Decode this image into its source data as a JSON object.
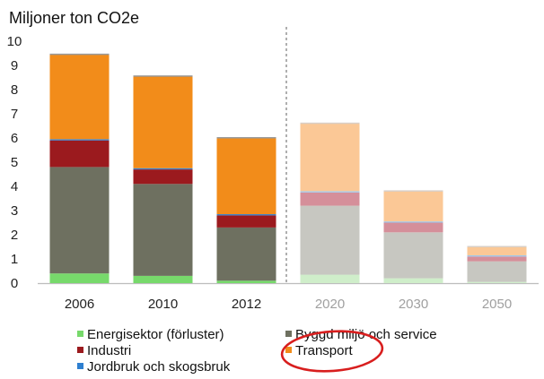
{
  "chart_data": {
    "type": "bar",
    "stacked": true,
    "title": "Miljoner ton CO2e",
    "categories": [
      "2006",
      "2010",
      "2012",
      "2020",
      "2030",
      "2050"
    ],
    "projected_from_index": 3,
    "ylim": [
      0,
      10
    ],
    "yticks": [
      0,
      1,
      2,
      3,
      4,
      5,
      6,
      7,
      8,
      9,
      10
    ],
    "series": [
      {
        "name": "Energisektor (förluster)",
        "color": "#77d96b",
        "faded_color": "#cfeeca",
        "values": [
          0.4,
          0.3,
          0.1,
          0.35,
          0.2,
          0.05
        ]
      },
      {
        "name": "Byggd miljö och service",
        "color": "#6e7060",
        "faded_color": "#c7c7c1",
        "values": [
          4.4,
          3.8,
          2.2,
          2.85,
          1.9,
          0.85
        ]
      },
      {
        "name": "Industri",
        "color": "#9b1a1e",
        "faded_color": "#d58f9a",
        "values": [
          1.1,
          0.6,
          0.5,
          0.55,
          0.4,
          0.2
        ]
      },
      {
        "name": "Jordbruk och skogsbruk",
        "color": "#2e7fd0",
        "faded_color": "#9cc7ec",
        "values": [
          0.05,
          0.05,
          0.05,
          0.05,
          0.05,
          0.05
        ]
      },
      {
        "name": "Transport",
        "color": "#f28c1a",
        "faded_color": "#fbc896",
        "values": [
          3.5,
          3.8,
          3.15,
          2.8,
          1.25,
          0.35
        ]
      }
    ],
    "legend_order": [
      0,
      1,
      2,
      4,
      3
    ],
    "highlight": {
      "series": "Transport",
      "shape": "ellipse",
      "color": "#d81e1e"
    },
    "grid": false,
    "legend": "bottom"
  }
}
